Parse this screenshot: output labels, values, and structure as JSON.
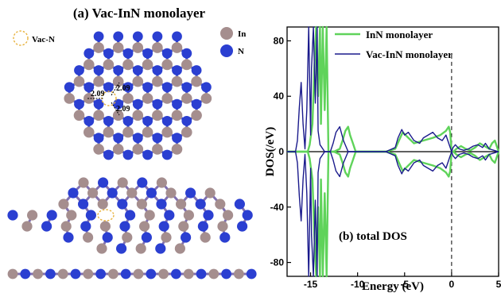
{
  "panel_a": {
    "title": "(a) Vac-InN monolayer",
    "vacancy_label": "Vac-N",
    "legend": [
      {
        "label": "In",
        "color": "#a58e8e"
      },
      {
        "label": "N",
        "color": "#2b3fd1"
      }
    ],
    "bond_lengths": [
      "2.09",
      "2.09",
      "2.09"
    ],
    "colors": {
      "indium": "#a58e8e",
      "nitrogen": "#2b3fd1",
      "vacancy": "#e8b340"
    }
  },
  "chart_data": {
    "type": "line",
    "panel_label": "(b) total DOS",
    "xlabel": "Energy (eV)",
    "ylabel": "DOS(/eV)",
    "xlim": [
      -17.5,
      5
    ],
    "ylim": [
      -90,
      90
    ],
    "xticks": [
      "-15",
      "-10",
      "-5",
      "0",
      "5"
    ],
    "yticks": [
      "80",
      "40",
      "0",
      "-40",
      "-80"
    ],
    "fermi_level": 0,
    "legend_position": "top-right",
    "series": [
      {
        "name": "InN monolayer",
        "color": "#5fd35a",
        "x": [
          -17.5,
          -15.3,
          -15.1,
          -14.8,
          -14.6,
          -14.4,
          -14.2,
          -14.0,
          -13.9,
          -13.7,
          -13.5,
          -13.3,
          -13.1,
          -12.5,
          -11.9,
          -11.6,
          -11.3,
          -11.0,
          -10.8,
          -10.5,
          -10.2,
          -9.0,
          -7.0,
          -6.0,
          -5.6,
          -5.2,
          -4.6,
          -4.0,
          -3.0,
          -2.0,
          -1.2,
          -0.6,
          -0.3,
          -0.15,
          0.0,
          0.2,
          0.5,
          1.0,
          1.5,
          2.0,
          2.5,
          3.0,
          3.5,
          4.0,
          4.3,
          4.6,
          5.0
        ],
        "y": [
          0,
          0,
          5,
          20,
          60,
          90,
          40,
          90,
          20,
          90,
          30,
          90,
          0,
          0,
          2,
          8,
          15,
          18,
          12,
          6,
          0,
          0,
          0,
          2,
          8,
          14,
          10,
          6,
          8,
          10,
          12,
          15,
          18,
          14,
          0,
          0,
          2,
          4,
          2,
          1,
          3,
          6,
          4,
          2,
          6,
          8,
          0
        ]
      },
      {
        "name": "Vac-InN monolayer",
        "color": "#1a1a8c",
        "x": [
          -17.5,
          -16.6,
          -16.4,
          -16.2,
          -16.0,
          -15.8,
          -15.6,
          -15.4,
          -15.2,
          -15.0,
          -14.9,
          -14.7,
          -14.5,
          -14.3,
          -14.2,
          -14.0,
          -13.5,
          -12.9,
          -12.6,
          -12.3,
          -11.9,
          -11.5,
          -11.0,
          -9.0,
          -7.0,
          -6.0,
          -5.7,
          -5.3,
          -5.0,
          -4.6,
          -4.0,
          -3.4,
          -3.0,
          -2.5,
          -2.0,
          -1.5,
          -1.0,
          -0.6,
          -0.3,
          -0.1,
          0.0,
          0.15,
          0.4,
          0.8,
          1.3,
          1.8,
          2.3,
          2.8,
          3.3,
          3.6,
          4.0,
          4.5,
          5.0
        ],
        "y": [
          0,
          0,
          8,
          32,
          50,
          20,
          2,
          30,
          90,
          12,
          60,
          90,
          35,
          90,
          15,
          5,
          0,
          0,
          6,
          14,
          18,
          8,
          0,
          0,
          0,
          3,
          10,
          16,
          12,
          14,
          8,
          6,
          10,
          12,
          14,
          10,
          8,
          12,
          6,
          2,
          0,
          3,
          5,
          2,
          1,
          2,
          4,
          5,
          3,
          6,
          2,
          1,
          0
        ]
      }
    ]
  }
}
